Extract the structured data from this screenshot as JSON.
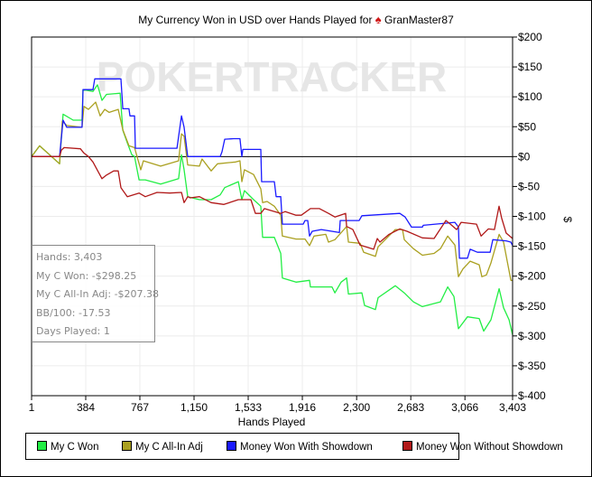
{
  "title": "My Currency Won in USD over Hands Played for",
  "player": "GranMaster87",
  "title_icon": "pokerstars-spade-icon",
  "watermark": "POKERTRACKER",
  "info_box": {
    "hands": "Hands: 3,403",
    "my_c_won": "My C Won: -$298.25",
    "all_in_adj": "My C All-In Adj: -$207.38",
    "bb100": "BB/100: -17.53",
    "days": "Days Played: 1"
  },
  "chart_data": {
    "type": "line",
    "xlabel": "Hands Played",
    "ylabel": "$",
    "xlim": [
      1,
      3403
    ],
    "ylim": [
      -400,
      200
    ],
    "x_ticks": [
      1,
      384,
      767,
      1150,
      1533,
      1916,
      2300,
      2683,
      3066,
      3403
    ],
    "x_tick_labels": [
      "1",
      "384",
      "767",
      "1,150",
      "1,533",
      "1,916",
      "2,300",
      "2,683",
      "3,066",
      "3,403"
    ],
    "y_ticks": [
      200,
      150,
      100,
      50,
      0,
      -50,
      -100,
      -150,
      -200,
      -250,
      -300,
      -350,
      -400
    ],
    "y_tick_labels": [
      "$200",
      "$150",
      "$100",
      "$50",
      "$0",
      "$-50",
      "$-100",
      "$-150",
      "$-200",
      "$-250",
      "$-300",
      "$-350",
      "$-400"
    ],
    "grid": true,
    "y_axis_side": "right",
    "legend_position": "bottom",
    "series": [
      {
        "name": "My C Won",
        "color": "#22ee44",
        "points": [
          [
            1,
            0
          ],
          [
            58,
            18
          ],
          [
            199,
            -12
          ],
          [
            224,
            71
          ],
          [
            295,
            61
          ],
          [
            358,
            61
          ],
          [
            365,
            112
          ],
          [
            435,
            109
          ],
          [
            467,
            120
          ],
          [
            499,
            94
          ],
          [
            531,
            104
          ],
          [
            627,
            106
          ],
          [
            646,
            44
          ],
          [
            678,
            23
          ],
          [
            710,
            3
          ],
          [
            729,
            0
          ],
          [
            761,
            -39
          ],
          [
            805,
            -39
          ],
          [
            914,
            -46
          ],
          [
            1041,
            -37
          ],
          [
            1061,
            3
          ],
          [
            1080,
            -22
          ],
          [
            1105,
            -67
          ],
          [
            1188,
            -72
          ],
          [
            1271,
            -72
          ],
          [
            1335,
            -64
          ],
          [
            1367,
            -52
          ],
          [
            1463,
            -42
          ],
          [
            1488,
            -72
          ],
          [
            1507,
            -57
          ],
          [
            1571,
            -72
          ],
          [
            1622,
            -83
          ],
          [
            1635,
            -135
          ],
          [
            1718,
            -135
          ],
          [
            1763,
            -162
          ],
          [
            1775,
            -203
          ],
          [
            1871,
            -210
          ],
          [
            1967,
            -207
          ],
          [
            1973,
            -218
          ],
          [
            2126,
            -218
          ],
          [
            2146,
            -228
          ],
          [
            2190,
            -210
          ],
          [
            2229,
            -203
          ],
          [
            2242,
            -230
          ],
          [
            2337,
            -228
          ],
          [
            2356,
            -249
          ],
          [
            2433,
            -256
          ],
          [
            2452,
            -236
          ],
          [
            2573,
            -216
          ],
          [
            2637,
            -228
          ],
          [
            2701,
            -243
          ],
          [
            2765,
            -251
          ],
          [
            2893,
            -243
          ],
          [
            2944,
            -218
          ],
          [
            2988,
            -234
          ],
          [
            3020,
            -288
          ],
          [
            3084,
            -268
          ],
          [
            3167,
            -271
          ],
          [
            3199,
            -292
          ],
          [
            3250,
            -273
          ],
          [
            3308,
            -221
          ],
          [
            3339,
            -253
          ],
          [
            3378,
            -273
          ],
          [
            3403,
            -298.25
          ]
        ]
      },
      {
        "name": "My C All-In Adj",
        "color": "#aaa020",
        "points": [
          [
            1,
            0
          ],
          [
            58,
            18
          ],
          [
            199,
            -12
          ],
          [
            218,
            59
          ],
          [
            250,
            52
          ],
          [
            358,
            49
          ],
          [
            371,
            84
          ],
          [
            403,
            79
          ],
          [
            454,
            91
          ],
          [
            486,
            68
          ],
          [
            518,
            79
          ],
          [
            550,
            74
          ],
          [
            614,
            79
          ],
          [
            646,
            45
          ],
          [
            690,
            18
          ],
          [
            729,
            15
          ],
          [
            773,
            -22
          ],
          [
            792,
            -7
          ],
          [
            914,
            -16
          ],
          [
            1041,
            -7
          ],
          [
            1061,
            38
          ],
          [
            1080,
            34
          ],
          [
            1105,
            -14
          ],
          [
            1188,
            -16
          ],
          [
            1207,
            -4
          ],
          [
            1271,
            -24
          ],
          [
            1316,
            -12
          ],
          [
            1444,
            -9
          ],
          [
            1475,
            -7
          ],
          [
            1488,
            -42
          ],
          [
            1507,
            -22
          ],
          [
            1571,
            -30
          ],
          [
            1622,
            -54
          ],
          [
            1635,
            -77
          ],
          [
            1667,
            -75
          ],
          [
            1718,
            -83
          ],
          [
            1763,
            -98
          ],
          [
            1775,
            -133
          ],
          [
            1871,
            -138
          ],
          [
            1935,
            -138
          ],
          [
            1967,
            -149
          ],
          [
            1999,
            -133
          ],
          [
            2082,
            -130
          ],
          [
            2101,
            -143
          ],
          [
            2146,
            -139
          ],
          [
            2229,
            -117
          ],
          [
            2242,
            -143
          ],
          [
            2324,
            -145
          ],
          [
            2350,
            -160
          ],
          [
            2433,
            -167
          ],
          [
            2452,
            -151
          ],
          [
            2573,
            -122
          ],
          [
            2624,
            -122
          ],
          [
            2637,
            -139
          ],
          [
            2701,
            -154
          ],
          [
            2765,
            -165
          ],
          [
            2848,
            -162
          ],
          [
            2893,
            -154
          ],
          [
            2944,
            -133
          ],
          [
            2995,
            -148
          ],
          [
            3020,
            -201
          ],
          [
            3052,
            -188
          ],
          [
            3103,
            -175
          ],
          [
            3167,
            -181
          ],
          [
            3186,
            -201
          ],
          [
            3218,
            -198
          ],
          [
            3250,
            -178
          ],
          [
            3308,
            -130
          ],
          [
            3339,
            -143
          ],
          [
            3391,
            -207
          ],
          [
            3403,
            -207.38
          ]
        ]
      },
      {
        "name": "Money Won With Showdown",
        "color": "#1a1aff",
        "points": [
          [
            1,
            0
          ],
          [
            199,
            0
          ],
          [
            224,
            61
          ],
          [
            250,
            49
          ],
          [
            358,
            49
          ],
          [
            365,
            112
          ],
          [
            435,
            112
          ],
          [
            448,
            130
          ],
          [
            633,
            130
          ],
          [
            646,
            80
          ],
          [
            690,
            80
          ],
          [
            697,
            68
          ],
          [
            729,
            68
          ],
          [
            735,
            14
          ],
          [
            1029,
            14
          ],
          [
            1061,
            68
          ],
          [
            1080,
            49
          ],
          [
            1105,
            0
          ],
          [
            1335,
            0
          ],
          [
            1348,
            8
          ],
          [
            1367,
            29
          ],
          [
            1431,
            30
          ],
          [
            1475,
            30
          ],
          [
            1488,
            0
          ],
          [
            1495,
            12
          ],
          [
            1622,
            12
          ],
          [
            1628,
            -42
          ],
          [
            1718,
            -42
          ],
          [
            1731,
            -67
          ],
          [
            1763,
            -67
          ],
          [
            1775,
            -113
          ],
          [
            1922,
            -113
          ],
          [
            1935,
            -107
          ],
          [
            1954,
            -107
          ],
          [
            1967,
            -133
          ],
          [
            1986,
            -125
          ],
          [
            2050,
            -122
          ],
          [
            2178,
            -127
          ],
          [
            2184,
            -107
          ],
          [
            2318,
            -107
          ],
          [
            2337,
            -99
          ],
          [
            2605,
            -95
          ],
          [
            2643,
            -101
          ],
          [
            2688,
            -118
          ],
          [
            2765,
            -118
          ],
          [
            2771,
            -115
          ],
          [
            2995,
            -110
          ],
          [
            3020,
            -118
          ],
          [
            3027,
            -170
          ],
          [
            3084,
            -170
          ],
          [
            3103,
            -155
          ],
          [
            3154,
            -160
          ],
          [
            3244,
            -160
          ],
          [
            3263,
            -139
          ],
          [
            3358,
            -141
          ],
          [
            3391,
            -143
          ],
          [
            3403,
            -149
          ]
        ]
      },
      {
        "name": "Money Won Without Showdown",
        "color": "#b01818",
        "points": [
          [
            1,
            0
          ],
          [
            199,
            0
          ],
          [
            212,
            11
          ],
          [
            231,
            15
          ],
          [
            346,
            13
          ],
          [
            371,
            6
          ],
          [
            403,
            0
          ],
          [
            435,
            -9
          ],
          [
            499,
            -37
          ],
          [
            531,
            -31
          ],
          [
            582,
            -24
          ],
          [
            614,
            -24
          ],
          [
            633,
            -52
          ],
          [
            678,
            -67
          ],
          [
            761,
            -61
          ],
          [
            805,
            -67
          ],
          [
            888,
            -60
          ],
          [
            978,
            -61
          ],
          [
            1061,
            -60
          ],
          [
            1080,
            -77
          ],
          [
            1105,
            -67
          ],
          [
            1124,
            -69
          ],
          [
            1188,
            -67
          ],
          [
            1271,
            -77
          ],
          [
            1361,
            -80
          ],
          [
            1463,
            -72
          ],
          [
            1552,
            -72
          ],
          [
            1584,
            -95
          ],
          [
            1622,
            -95
          ],
          [
            1648,
            -87
          ],
          [
            1763,
            -95
          ],
          [
            1795,
            -92
          ],
          [
            1871,
            -98
          ],
          [
            1909,
            -98
          ],
          [
            1973,
            -87
          ],
          [
            2037,
            -87
          ],
          [
            2101,
            -95
          ],
          [
            2146,
            -101
          ],
          [
            2222,
            -95
          ],
          [
            2229,
            -117
          ],
          [
            2273,
            -122
          ],
          [
            2324,
            -148
          ],
          [
            2420,
            -155
          ],
          [
            2446,
            -137
          ],
          [
            2465,
            -143
          ],
          [
            2529,
            -130
          ],
          [
            2605,
            -121
          ],
          [
            2656,
            -125
          ],
          [
            2765,
            -136
          ],
          [
            2848,
            -137
          ],
          [
            2931,
            -107
          ],
          [
            2963,
            -113
          ],
          [
            3007,
            -122
          ],
          [
            3039,
            -110
          ],
          [
            3148,
            -113
          ],
          [
            3180,
            -133
          ],
          [
            3231,
            -121
          ],
          [
            3275,
            -122
          ],
          [
            3307,
            -83
          ],
          [
            3326,
            -103
          ],
          [
            3358,
            -128
          ],
          [
            3403,
            -137
          ]
        ]
      }
    ]
  }
}
